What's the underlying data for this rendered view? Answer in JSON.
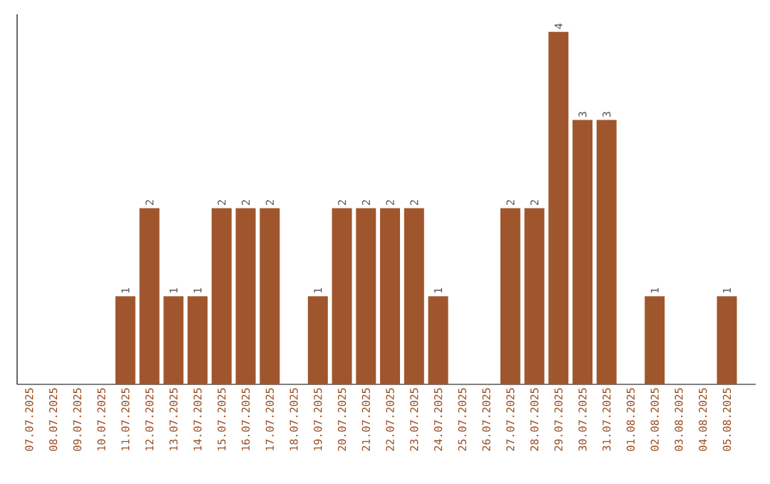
{
  "chart_data": {
    "type": "bar",
    "categories": [
      "07.07.2025",
      "08.07.2025",
      "09.07.2025",
      "10.07.2025",
      "11.07.2025",
      "12.07.2025",
      "13.07.2025",
      "14.07.2025",
      "15.07.2025",
      "16.07.2025",
      "17.07.2025",
      "18.07.2025",
      "19.07.2025",
      "20.07.2025",
      "21.07.2025",
      "22.07.2025",
      "23.07.2025",
      "24.07.2025",
      "25.07.2025",
      "26.07.2025",
      "27.07.2025",
      "28.07.2025",
      "29.07.2025",
      "30.07.2025",
      "31.07.2025",
      "01.08.2025",
      "02.08.2025",
      "03.08.2025",
      "04.08.2025",
      "05.08.2025"
    ],
    "values": [
      0,
      0,
      0,
      0,
      1,
      2,
      1,
      1,
      2,
      2,
      2,
      0,
      1,
      2,
      2,
      2,
      2,
      1,
      0,
      0,
      2,
      2,
      4,
      3,
      3,
      0,
      1,
      0,
      0,
      1
    ],
    "value_labels": [
      null,
      null,
      null,
      null,
      "1",
      "2",
      "1",
      "1",
      "2",
      "2",
      "2",
      null,
      "1",
      "2",
      "2",
      "2",
      "2",
      "1",
      null,
      null,
      "2",
      "2",
      "4",
      "3",
      "3",
      null,
      "1",
      null,
      null,
      "1"
    ],
    "color": "#a0562c",
    "ylim": [
      0,
      4.2
    ],
    "tick_labels": "x"
  }
}
